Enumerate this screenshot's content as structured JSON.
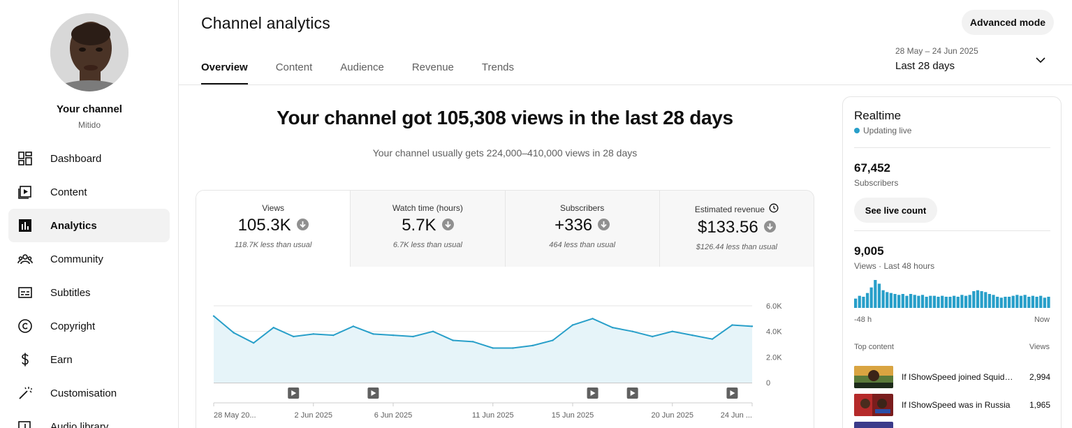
{
  "sidebar": {
    "your_channel": "Your channel",
    "channel_name": "Mitido",
    "items": [
      {
        "label": "Dashboard",
        "icon": "dashboard-icon"
      },
      {
        "label": "Content",
        "icon": "content-icon"
      },
      {
        "label": "Analytics",
        "icon": "analytics-icon",
        "active": true
      },
      {
        "label": "Community",
        "icon": "community-icon"
      },
      {
        "label": "Subtitles",
        "icon": "subtitles-icon"
      },
      {
        "label": "Copyright",
        "icon": "copyright-icon"
      },
      {
        "label": "Earn",
        "icon": "dollar-icon"
      },
      {
        "label": "Customisation",
        "icon": "magic-wand-icon"
      },
      {
        "label": "Audio library",
        "icon": "audio-icon"
      }
    ]
  },
  "header": {
    "title": "Channel analytics",
    "advanced_mode": "Advanced mode",
    "tabs": [
      "Overview",
      "Content",
      "Audience",
      "Revenue",
      "Trends"
    ],
    "active_tab": "Overview",
    "date_range": "28 May – 24 Jun 2025",
    "date_label": "Last 28 days"
  },
  "main": {
    "headline": "Your channel got 105,308 views in the last 28 days",
    "subline": "Your channel usually gets 224,000–410,000 views in 28 days",
    "metrics": [
      {
        "label": "Views",
        "value": "105.3K",
        "note": "118.7K less than usual",
        "active": true
      },
      {
        "label": "Watch time (hours)",
        "value": "5.7K",
        "note": "6.7K less than usual"
      },
      {
        "label": "Subscribers",
        "value": "+336",
        "note": "464 less than usual"
      },
      {
        "label": "Estimated revenue",
        "value": "$133.56",
        "note": "$126.44 less than usual",
        "has_clock": true
      }
    ]
  },
  "chart_data": {
    "type": "area",
    "x": [
      "28 May",
      "29 May",
      "30 May",
      "31 May",
      "1 Jun",
      "2 Jun",
      "3 Jun",
      "4 Jun",
      "5 Jun",
      "6 Jun",
      "7 Jun",
      "8 Jun",
      "9 Jun",
      "10 Jun",
      "11 Jun",
      "12 Jun",
      "13 Jun",
      "14 Jun",
      "15 Jun",
      "16 Jun",
      "17 Jun",
      "18 Jun",
      "19 Jun",
      "20 Jun",
      "21 Jun",
      "22 Jun",
      "23 Jun",
      "24 Jun"
    ],
    "series": [
      {
        "values": [
          5200,
          3900,
          3100,
          4300,
          3600,
          3800,
          3700,
          4400,
          3800,
          3700,
          3600,
          4000,
          3300,
          3200,
          2700,
          2700,
          2900,
          3300,
          4500,
          5000,
          4300,
          4000,
          3600,
          4000,
          3700,
          3400,
          4500,
          4400
        ]
      }
    ],
    "tick_labels": [
      "28 May 20...",
      "2 Jun 2025",
      "6 Jun 2025",
      "11 Jun 2025",
      "15 Jun 2025",
      "20 Jun 2025",
      "24 Jun ..."
    ],
    "tick_indices": [
      0,
      5,
      9,
      14,
      18,
      23,
      27
    ],
    "y_ticks": [
      {
        "value": 6000,
        "label": "6.0K"
      },
      {
        "value": 4000,
        "label": "4.0K"
      },
      {
        "value": 2000,
        "label": "2.0K"
      },
      {
        "value": 0,
        "label": "0"
      }
    ],
    "ylim": [
      0,
      6000
    ],
    "grid": true,
    "video_markers": [
      4,
      8,
      19,
      21,
      26
    ],
    "color": "#289fc9"
  },
  "realtime": {
    "title": "Realtime",
    "live": "Updating live",
    "subscribers": "67,452",
    "subscribers_label": "Subscribers",
    "live_count_button": "See live count",
    "views": "9,005",
    "views_label": "Views · Last 48 hours",
    "bars": [
      10,
      13,
      12,
      16,
      22,
      30,
      26,
      19,
      17,
      16,
      15,
      14,
      15,
      13,
      15,
      14,
      13,
      14,
      12,
      13,
      13,
      12,
      13,
      12,
      12,
      13,
      12,
      14,
      13,
      14,
      18,
      19,
      18,
      17,
      15,
      14,
      12,
      11,
      12,
      12,
      13,
      14,
      13,
      14,
      12,
      13,
      12,
      13,
      11,
      12
    ],
    "axis_left": "-48 h",
    "axis_right": "Now",
    "top_content": "Top content",
    "top_views": "Views",
    "items": [
      {
        "title": "If IShowSpeed joined Squid Game",
        "views": "2,994"
      },
      {
        "title": "If IShowSpeed was in Russia",
        "views": "1,965"
      },
      {
        "title": "",
        "views": ""
      }
    ]
  }
}
